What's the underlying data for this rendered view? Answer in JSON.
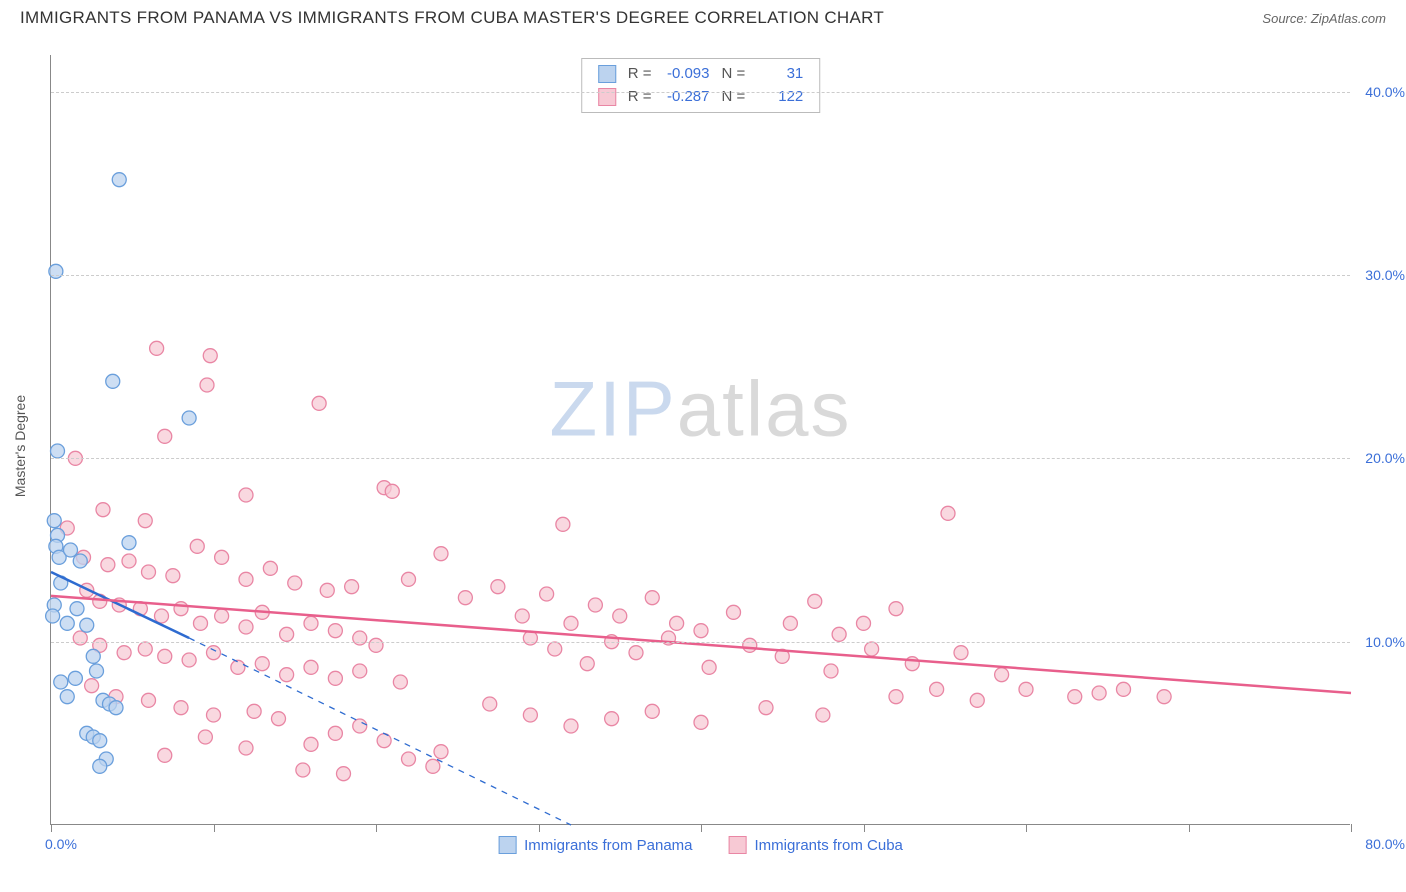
{
  "header": {
    "title": "IMMIGRANTS FROM PANAMA VS IMMIGRANTS FROM CUBA MASTER'S DEGREE CORRELATION CHART",
    "source_label": "Source:",
    "source_name": "ZipAtlas.com"
  },
  "watermark": {
    "part1": "ZIP",
    "part2": "atlas"
  },
  "chart": {
    "type": "scatter",
    "background_color": "#ffffff",
    "grid_color": "#cccccc",
    "axis_color": "#888888",
    "label_color": "#3b6fd8",
    "y_axis_title": "Master's Degree",
    "xlim": [
      0,
      80
    ],
    "ylim": [
      0,
      42
    ],
    "x_ticks": [
      0,
      10,
      20,
      30,
      40,
      50,
      60,
      70,
      80
    ],
    "x_tick_labels": {
      "first": "0.0%",
      "last": "80.0%"
    },
    "y_ticks": [
      10,
      20,
      30,
      40
    ],
    "y_tick_labels": [
      "10.0%",
      "20.0%",
      "30.0%",
      "40.0%"
    ],
    "stats": [
      {
        "r_label": "R =",
        "r_value": "-0.093",
        "n_label": "N =",
        "n_value": "31"
      },
      {
        "r_label": "R =",
        "r_value": "-0.287",
        "n_label": "N =",
        "n_value": "122"
      }
    ],
    "series": [
      {
        "key": "panama",
        "label": "Immigrants from Panama",
        "marker_fill": "#bcd3ef",
        "marker_stroke": "#6a9fdc",
        "marker_radius": 7,
        "marker_opacity": 0.75,
        "trend_color": "#2e6bd0",
        "trend_width": 2.5,
        "trend_solid": {
          "x1": 0,
          "y1": 13.8,
          "x2": 8.5,
          "y2": 10.2
        },
        "trend_dashed": {
          "x1": 8.5,
          "y1": 10.2,
          "x2": 32,
          "y2": 0
        },
        "points": [
          [
            0.3,
            30.2
          ],
          [
            4.2,
            35.2
          ],
          [
            3.8,
            24.2
          ],
          [
            0.4,
            20.4
          ],
          [
            0.2,
            16.6
          ],
          [
            0.4,
            15.8
          ],
          [
            0.3,
            15.2
          ],
          [
            0.5,
            14.6
          ],
          [
            1.2,
            15.0
          ],
          [
            1.8,
            14.4
          ],
          [
            0.6,
            13.2
          ],
          [
            0.2,
            12.0
          ],
          [
            0.1,
            11.4
          ],
          [
            1.6,
            11.8
          ],
          [
            1.0,
            11.0
          ],
          [
            2.2,
            10.9
          ],
          [
            2.6,
            9.2
          ],
          [
            2.8,
            8.4
          ],
          [
            1.5,
            8.0
          ],
          [
            0.6,
            7.8
          ],
          [
            1.0,
            7.0
          ],
          [
            3.2,
            6.8
          ],
          [
            3.6,
            6.6
          ],
          [
            4.0,
            6.4
          ],
          [
            2.2,
            5.0
          ],
          [
            2.6,
            4.8
          ],
          [
            3.0,
            4.6
          ],
          [
            3.4,
            3.6
          ],
          [
            3.0,
            3.2
          ],
          [
            8.5,
            22.2
          ],
          [
            4.8,
            15.4
          ]
        ]
      },
      {
        "key": "cuba",
        "label": "Immigrants from Cuba",
        "marker_fill": "#f7c9d4",
        "marker_stroke": "#e986a4",
        "marker_radius": 7,
        "marker_opacity": 0.72,
        "trend_color": "#e85f8c",
        "trend_width": 2.5,
        "trend_solid": {
          "x1": 0,
          "y1": 12.5,
          "x2": 80,
          "y2": 7.2
        },
        "points": [
          [
            6.5,
            26.0
          ],
          [
            9.8,
            25.6
          ],
          [
            9.6,
            24.0
          ],
          [
            7.0,
            21.2
          ],
          [
            16.5,
            23.0
          ],
          [
            1.5,
            20.0
          ],
          [
            3.2,
            17.2
          ],
          [
            5.8,
            16.6
          ],
          [
            12.0,
            18.0
          ],
          [
            20.5,
            18.4
          ],
          [
            21.0,
            18.2
          ],
          [
            31.5,
            16.4
          ],
          [
            55.2,
            17.0
          ],
          [
            1.0,
            16.2
          ],
          [
            2.0,
            14.6
          ],
          [
            3.5,
            14.2
          ],
          [
            4.8,
            14.4
          ],
          [
            6.0,
            13.8
          ],
          [
            7.5,
            13.6
          ],
          [
            9.0,
            15.2
          ],
          [
            10.5,
            14.6
          ],
          [
            12.0,
            13.4
          ],
          [
            13.5,
            14.0
          ],
          [
            15.0,
            13.2
          ],
          [
            17.0,
            12.8
          ],
          [
            18.5,
            13.0
          ],
          [
            22.0,
            13.4
          ],
          [
            24.0,
            14.8
          ],
          [
            25.5,
            12.4
          ],
          [
            27.5,
            13.0
          ],
          [
            2.2,
            12.8
          ],
          [
            3.0,
            12.2
          ],
          [
            4.2,
            12.0
          ],
          [
            5.5,
            11.8
          ],
          [
            6.8,
            11.4
          ],
          [
            8.0,
            11.8
          ],
          [
            9.2,
            11.0
          ],
          [
            10.5,
            11.4
          ],
          [
            12.0,
            10.8
          ],
          [
            13.0,
            11.6
          ],
          [
            14.5,
            10.4
          ],
          [
            16.0,
            11.0
          ],
          [
            17.5,
            10.6
          ],
          [
            19.0,
            10.2
          ],
          [
            29.0,
            11.4
          ],
          [
            30.5,
            12.6
          ],
          [
            32.0,
            11.0
          ],
          [
            33.5,
            12.0
          ],
          [
            35.0,
            11.4
          ],
          [
            37.0,
            12.4
          ],
          [
            38.5,
            11.0
          ],
          [
            40.0,
            10.6
          ],
          [
            42.0,
            11.6
          ],
          [
            45.5,
            11.0
          ],
          [
            47.0,
            12.2
          ],
          [
            48.5,
            10.4
          ],
          [
            50.0,
            11.0
          ],
          [
            52.0,
            11.8
          ],
          [
            1.8,
            10.2
          ],
          [
            3.0,
            9.8
          ],
          [
            4.5,
            9.4
          ],
          [
            5.8,
            9.6
          ],
          [
            7.0,
            9.2
          ],
          [
            8.5,
            9.0
          ],
          [
            10.0,
            9.4
          ],
          [
            11.5,
            8.6
          ],
          [
            13.0,
            8.8
          ],
          [
            14.5,
            8.2
          ],
          [
            16.0,
            8.6
          ],
          [
            17.5,
            8.0
          ],
          [
            19.0,
            8.4
          ],
          [
            20.0,
            9.8
          ],
          [
            21.5,
            7.8
          ],
          [
            29.5,
            10.2
          ],
          [
            31.0,
            9.6
          ],
          [
            33.0,
            8.8
          ],
          [
            34.5,
            10.0
          ],
          [
            36.0,
            9.4
          ],
          [
            38.0,
            10.2
          ],
          [
            40.5,
            8.6
          ],
          [
            43.0,
            9.8
          ],
          [
            45.0,
            9.2
          ],
          [
            48.0,
            8.4
          ],
          [
            50.5,
            9.6
          ],
          [
            53.0,
            8.8
          ],
          [
            56.0,
            9.4
          ],
          [
            58.5,
            8.2
          ],
          [
            52.0,
            7.0
          ],
          [
            54.5,
            7.4
          ],
          [
            57.0,
            6.8
          ],
          [
            60.0,
            7.4
          ],
          [
            63.0,
            7.0
          ],
          [
            64.5,
            7.2
          ],
          [
            66.0,
            7.4
          ],
          [
            68.5,
            7.0
          ],
          [
            2.5,
            7.6
          ],
          [
            4.0,
            7.0
          ],
          [
            6.0,
            6.8
          ],
          [
            8.0,
            6.4
          ],
          [
            10.0,
            6.0
          ],
          [
            12.5,
            6.2
          ],
          [
            14.0,
            5.8
          ],
          [
            16.0,
            4.4
          ],
          [
            17.5,
            5.0
          ],
          [
            19.0,
            5.4
          ],
          [
            20.5,
            4.6
          ],
          [
            22.0,
            3.6
          ],
          [
            24.0,
            4.0
          ],
          [
            27.0,
            6.6
          ],
          [
            29.5,
            6.0
          ],
          [
            32.0,
            5.4
          ],
          [
            34.5,
            5.8
          ],
          [
            37.0,
            6.2
          ],
          [
            40.0,
            5.6
          ],
          [
            44.0,
            6.4
          ],
          [
            47.5,
            6.0
          ],
          [
            23.5,
            3.2
          ],
          [
            18.0,
            2.8
          ],
          [
            15.5,
            3.0
          ],
          [
            12.0,
            4.2
          ],
          [
            9.5,
            4.8
          ],
          [
            7.0,
            3.8
          ]
        ]
      }
    ],
    "bottom_legend": [
      {
        "label": "Immigrants from Panama",
        "fill": "#bcd3ef",
        "stroke": "#6a9fdc"
      },
      {
        "label": "Immigrants from Cuba",
        "fill": "#f7c9d4",
        "stroke": "#e986a4"
      }
    ]
  }
}
